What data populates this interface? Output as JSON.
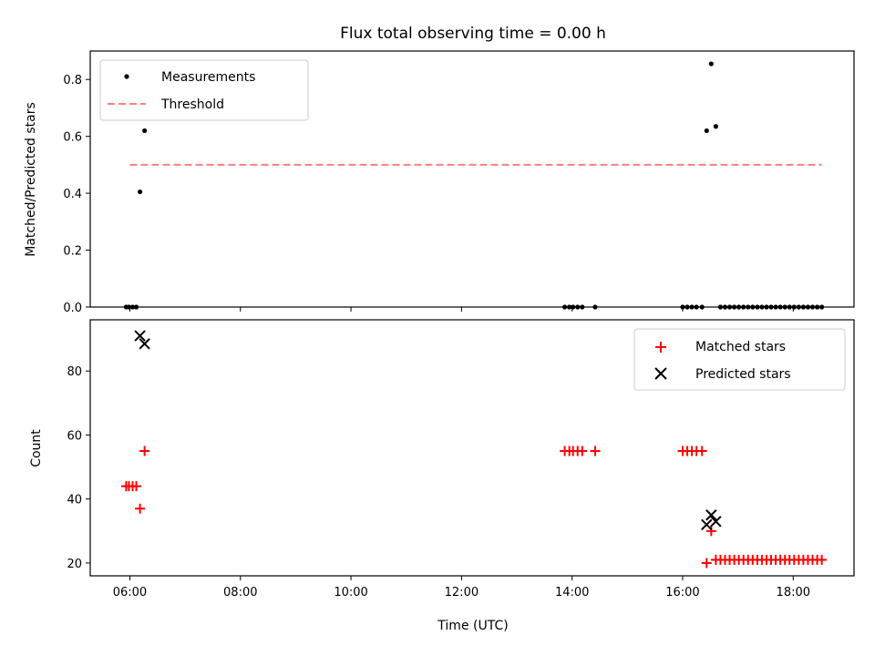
{
  "figure": {
    "title": "Flux total observing time = 0.00 h",
    "xlabel": "Time (UTC)"
  },
  "chart_data": [
    {
      "type": "scatter",
      "ylabel": "Matched/Predicted stars",
      "xlim": [
        "05:17",
        "19:06"
      ],
      "ylim": [
        0,
        0.9
      ],
      "yticks": [
        0.0,
        0.2,
        0.4,
        0.6,
        0.8
      ],
      "ytick_labels": [
        "0.0",
        "0.2",
        "0.4",
        "0.6",
        "0.8"
      ],
      "xticks": [
        "06:00",
        "08:00",
        "10:00",
        "12:00",
        "14:00",
        "16:00",
        "18:00"
      ],
      "xtick_labels_visible": false,
      "legend": {
        "placement": "top-left"
      },
      "series": [
        {
          "name": "Measurements",
          "marker": "dot",
          "color": "#000000",
          "points": [
            {
              "x": "05:56",
              "y": 0
            },
            {
              "x": "05:59",
              "y": 0
            },
            {
              "x": "06:03",
              "y": 0
            },
            {
              "x": "06:07",
              "y": 0
            },
            {
              "x": "06:11",
              "y": 0.405
            },
            {
              "x": "06:16",
              "y": 0.62
            },
            {
              "x": "13:52",
              "y": 0
            },
            {
              "x": "13:57",
              "y": 0
            },
            {
              "x": "14:01",
              "y": 0
            },
            {
              "x": "14:06",
              "y": 0
            },
            {
              "x": "14:11",
              "y": 0
            },
            {
              "x": "14:25",
              "y": 0
            },
            {
              "x": "16:00",
              "y": 0
            },
            {
              "x": "16:05",
              "y": 0
            },
            {
              "x": "16:10",
              "y": 0
            },
            {
              "x": "16:15",
              "y": 0
            },
            {
              "x": "16:21",
              "y": 0
            },
            {
              "x": "16:26",
              "y": 0.62
            },
            {
              "x": "16:31",
              "y": 0.855
            },
            {
              "x": "16:36",
              "y": 0.635
            },
            {
              "x": "16:41",
              "y": 0
            },
            {
              "x": "16:46",
              "y": 0
            },
            {
              "x": "16:51",
              "y": 0
            },
            {
              "x": "16:56",
              "y": 0
            },
            {
              "x": "17:01",
              "y": 0
            },
            {
              "x": "17:06",
              "y": 0
            },
            {
              "x": "17:11",
              "y": 0
            },
            {
              "x": "17:16",
              "y": 0
            },
            {
              "x": "17:21",
              "y": 0
            },
            {
              "x": "17:26",
              "y": 0
            },
            {
              "x": "17:31",
              "y": 0
            },
            {
              "x": "17:36",
              "y": 0
            },
            {
              "x": "17:41",
              "y": 0
            },
            {
              "x": "17:46",
              "y": 0
            },
            {
              "x": "17:51",
              "y": 0
            },
            {
              "x": "17:56",
              "y": 0
            },
            {
              "x": "18:01",
              "y": 0
            },
            {
              "x": "18:06",
              "y": 0
            },
            {
              "x": "18:11",
              "y": 0
            },
            {
              "x": "18:16",
              "y": 0
            },
            {
              "x": "18:21",
              "y": 0
            },
            {
              "x": "18:26",
              "y": 0
            },
            {
              "x": "18:31",
              "y": 0
            }
          ]
        },
        {
          "name": "Threshold",
          "marker": "dashed-line",
          "color": "#ff7f7f",
          "points": [
            {
              "x": "06:00",
              "y": 0.5
            },
            {
              "x": "18:31",
              "y": 0.5
            }
          ]
        }
      ]
    },
    {
      "type": "scatter",
      "ylabel": "Count",
      "xlim": [
        "05:17",
        "19:06"
      ],
      "ylim": [
        16,
        96
      ],
      "yticks": [
        20,
        40,
        60,
        80
      ],
      "ytick_labels": [
        "20",
        "40",
        "60",
        "80"
      ],
      "xticks": [
        "06:00",
        "08:00",
        "10:00",
        "12:00",
        "14:00",
        "16:00",
        "18:00"
      ],
      "xtick_labels": [
        "06:00",
        "08:00",
        "10:00",
        "12:00",
        "14:00",
        "16:00",
        "18:00"
      ],
      "legend": {
        "placement": "top-right"
      },
      "series": [
        {
          "name": "Matched stars",
          "marker": "plus",
          "color": "#ff0000",
          "points": [
            {
              "x": "05:56",
              "y": 44
            },
            {
              "x": "05:59",
              "y": 44
            },
            {
              "x": "06:03",
              "y": 44
            },
            {
              "x": "06:07",
              "y": 44
            },
            {
              "x": "06:11",
              "y": 37
            },
            {
              "x": "06:16",
              "y": 55
            },
            {
              "x": "13:52",
              "y": 55
            },
            {
              "x": "13:57",
              "y": 55
            },
            {
              "x": "14:01",
              "y": 55
            },
            {
              "x": "14:06",
              "y": 55
            },
            {
              "x": "14:11",
              "y": 55
            },
            {
              "x": "14:25",
              "y": 55
            },
            {
              "x": "16:00",
              "y": 55
            },
            {
              "x": "16:05",
              "y": 55
            },
            {
              "x": "16:10",
              "y": 55
            },
            {
              "x": "16:15",
              "y": 55
            },
            {
              "x": "16:21",
              "y": 55
            },
            {
              "x": "16:26",
              "y": 20
            },
            {
              "x": "16:31",
              "y": 30
            },
            {
              "x": "16:36",
              "y": 21
            },
            {
              "x": "16:41",
              "y": 21
            },
            {
              "x": "16:46",
              "y": 21
            },
            {
              "x": "16:51",
              "y": 21
            },
            {
              "x": "16:56",
              "y": 21
            },
            {
              "x": "17:01",
              "y": 21
            },
            {
              "x": "17:06",
              "y": 21
            },
            {
              "x": "17:11",
              "y": 21
            },
            {
              "x": "17:16",
              "y": 21
            },
            {
              "x": "17:21",
              "y": 21
            },
            {
              "x": "17:26",
              "y": 21
            },
            {
              "x": "17:31",
              "y": 21
            },
            {
              "x": "17:36",
              "y": 21
            },
            {
              "x": "17:41",
              "y": 21
            },
            {
              "x": "17:46",
              "y": 21
            },
            {
              "x": "17:51",
              "y": 21
            },
            {
              "x": "17:56",
              "y": 21
            },
            {
              "x": "18:01",
              "y": 21
            },
            {
              "x": "18:06",
              "y": 21
            },
            {
              "x": "18:11",
              "y": 21
            },
            {
              "x": "18:16",
              "y": 21
            },
            {
              "x": "18:21",
              "y": 21
            },
            {
              "x": "18:26",
              "y": 21
            },
            {
              "x": "18:31",
              "y": 21
            }
          ]
        },
        {
          "name": "Predicted stars",
          "marker": "x",
          "color": "#000000",
          "points": [
            {
              "x": "06:11",
              "y": 91
            },
            {
              "x": "06:16",
              "y": 88.5
            },
            {
              "x": "16:26",
              "y": 32
            },
            {
              "x": "16:31",
              "y": 35
            },
            {
              "x": "16:36",
              "y": 33
            }
          ]
        }
      ]
    }
  ]
}
